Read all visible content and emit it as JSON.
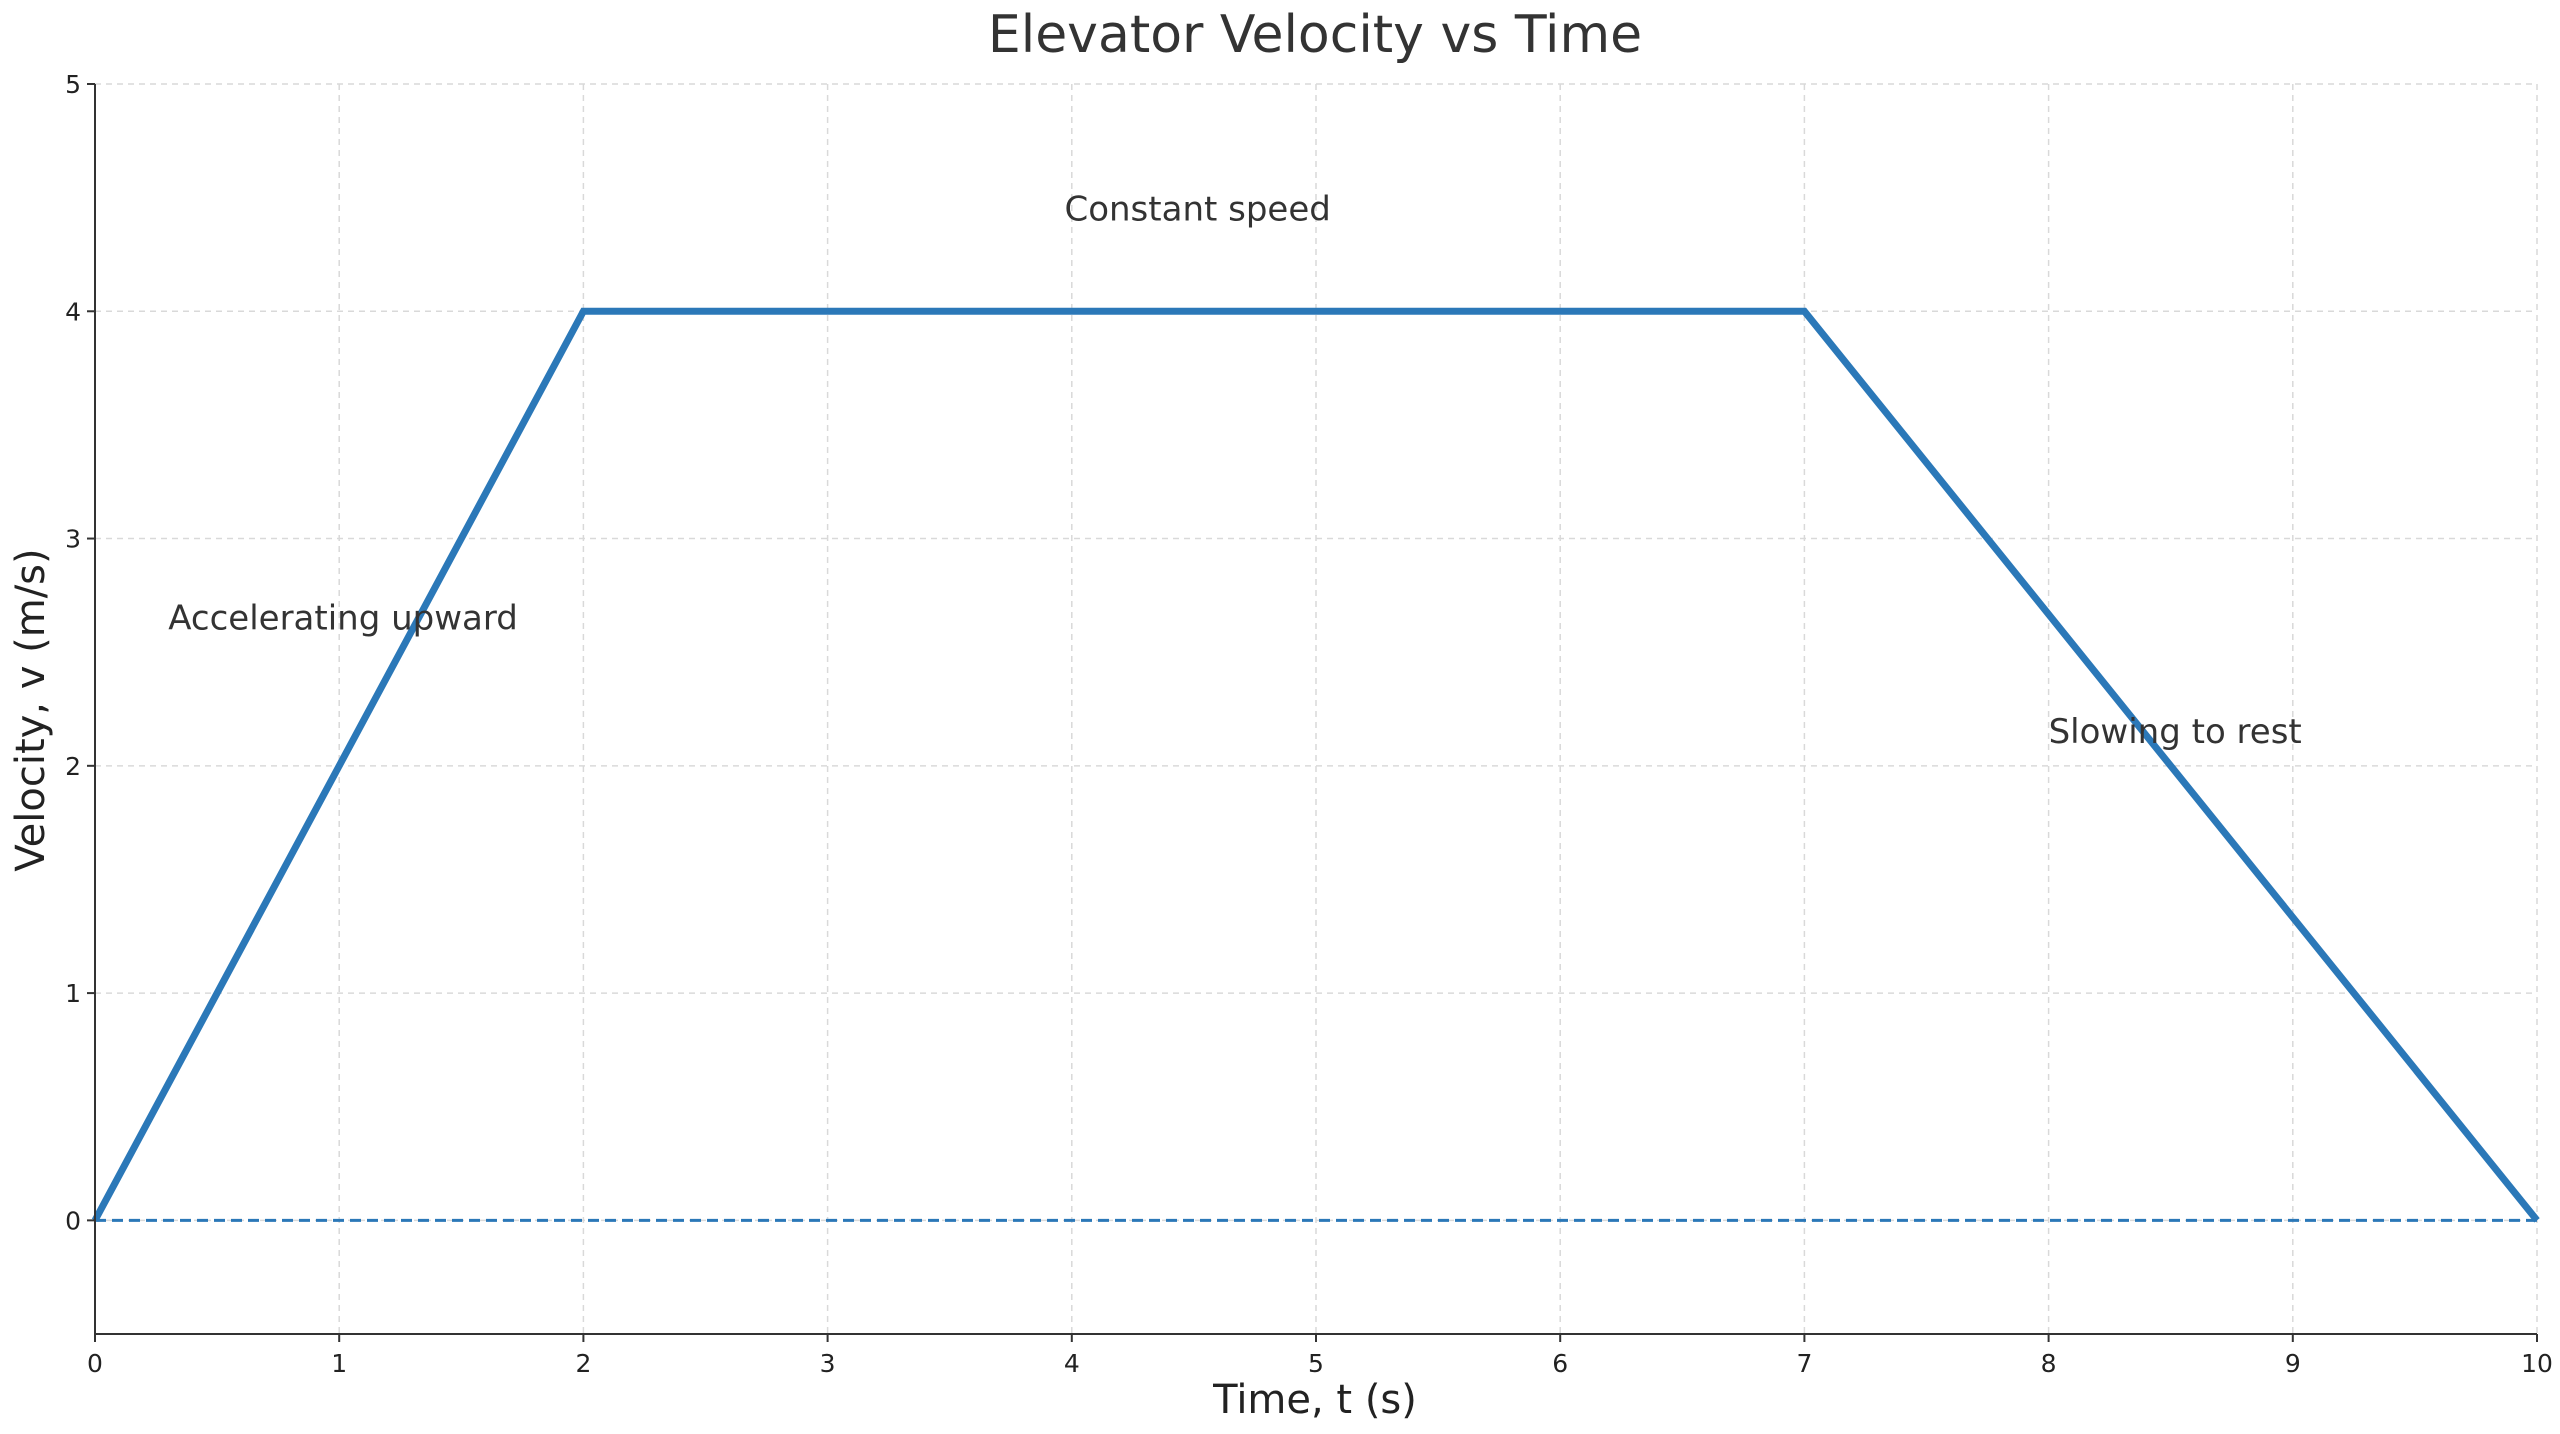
{
  "chart_data": {
    "type": "line",
    "title": "Elevator Velocity vs Time",
    "xlabel": "Time, t (s)",
    "ylabel": "Velocity, v (m/s)",
    "xlim": [
      0,
      10
    ],
    "ylim": [
      -0.5,
      5
    ],
    "x_ticks": [
      0,
      1,
      2,
      3,
      4,
      5,
      6,
      7,
      8,
      9,
      10
    ],
    "y_ticks": [
      0,
      1,
      2,
      3,
      4,
      5
    ],
    "grid": true,
    "series": [
      {
        "x": [
          0,
          2,
          7,
          10
        ],
        "y": [
          0,
          4,
          4,
          0
        ],
        "color": "#2b78b8",
        "style": "solid"
      }
    ],
    "reference_lines": [
      {
        "y": 0,
        "color": "#2b78b8",
        "style": "dashed"
      }
    ],
    "annotations": [
      {
        "text": "Accelerating upward",
        "x": 0.3,
        "y": 2.6
      },
      {
        "text": "Constant speed",
        "x": 3.97,
        "y": 4.4
      },
      {
        "text": "Slowing to rest",
        "x": 8.0,
        "y": 2.1
      }
    ]
  }
}
